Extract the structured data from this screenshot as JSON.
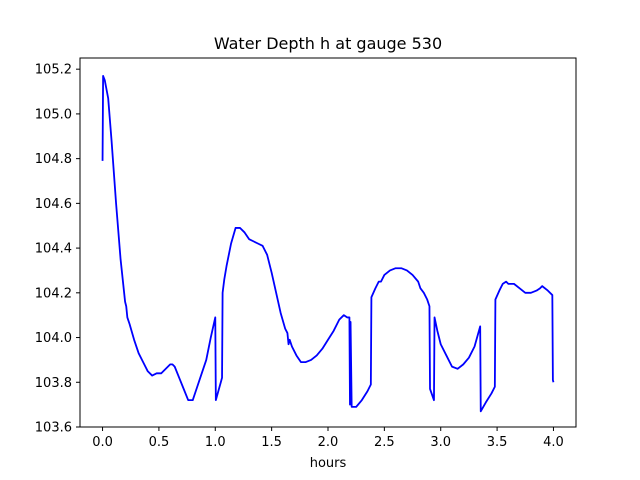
{
  "chart_data": {
    "type": "line",
    "title": "Water Depth h at gauge 530",
    "xlabel": "hours",
    "ylabel": "",
    "xlim": [
      -0.2,
      4.2
    ],
    "ylim": [
      103.6,
      105.25
    ],
    "xticks": [
      "0.0",
      "0.5",
      "1.0",
      "1.5",
      "2.0",
      "2.5",
      "3.0",
      "3.5",
      "4.0"
    ],
    "yticks": [
      "103.6",
      "103.8",
      "104.0",
      "104.2",
      "104.4",
      "104.6",
      "104.8",
      "105.0",
      "105.2"
    ],
    "grid": false,
    "series": [
      {
        "color": "#0000ff",
        "x": [
          0.0,
          0.005,
          0.02,
          0.05,
          0.08,
          0.12,
          0.16,
          0.2,
          0.21,
          0.22,
          0.24,
          0.28,
          0.32,
          0.36,
          0.4,
          0.44,
          0.48,
          0.52,
          0.56,
          0.6,
          0.62,
          0.64,
          0.68,
          0.72,
          0.76,
          0.8,
          0.84,
          0.88,
          0.92,
          0.96,
          1.0,
          1.005,
          1.06,
          1.065,
          1.08,
          1.1,
          1.14,
          1.18,
          1.22,
          1.26,
          1.3,
          1.34,
          1.38,
          1.42,
          1.46,
          1.5,
          1.54,
          1.58,
          1.62,
          1.64,
          1.65,
          1.66,
          1.68,
          1.72,
          1.76,
          1.8,
          1.85,
          1.9,
          1.95,
          2.0,
          2.05,
          2.1,
          2.14,
          2.17,
          2.19,
          2.195,
          2.2,
          2.21,
          2.215,
          2.22,
          2.25,
          2.3,
          2.35,
          2.38,
          2.385,
          2.42,
          2.45,
          2.47,
          2.5,
          2.55,
          2.6,
          2.65,
          2.7,
          2.75,
          2.8,
          2.82,
          2.85,
          2.88,
          2.9,
          2.905,
          2.94,
          2.945,
          2.97,
          3.0,
          3.05,
          3.1,
          3.15,
          3.2,
          3.25,
          3.3,
          3.35,
          3.355,
          3.4,
          3.45,
          3.48,
          3.485,
          3.52,
          3.55,
          3.58,
          3.6,
          3.65,
          3.7,
          3.75,
          3.8,
          3.85,
          3.88,
          3.9,
          3.95,
          3.99,
          3.995,
          4.0
        ],
        "y": [
          104.79,
          105.17,
          105.15,
          105.07,
          104.88,
          104.6,
          104.35,
          104.16,
          104.14,
          104.09,
          104.06,
          103.99,
          103.93,
          103.89,
          103.85,
          103.83,
          103.84,
          103.84,
          103.86,
          103.88,
          103.88,
          103.87,
          103.82,
          103.77,
          103.72,
          103.72,
          103.78,
          103.84,
          103.9,
          104.0,
          104.09,
          103.72,
          103.82,
          104.2,
          104.26,
          104.32,
          104.42,
          104.49,
          104.49,
          104.47,
          104.44,
          104.43,
          104.42,
          104.41,
          104.37,
          104.29,
          104.2,
          104.11,
          104.04,
          104.02,
          103.97,
          103.99,
          103.96,
          103.92,
          103.89,
          103.89,
          103.9,
          103.92,
          103.95,
          103.99,
          104.03,
          104.08,
          104.1,
          104.09,
          104.09,
          103.7,
          104.07,
          103.69,
          103.69,
          103.69,
          103.69,
          103.72,
          103.76,
          103.79,
          104.18,
          104.22,
          104.25,
          104.25,
          104.28,
          104.3,
          104.31,
          104.31,
          104.3,
          104.28,
          104.25,
          104.22,
          104.2,
          104.17,
          104.14,
          103.77,
          103.72,
          104.09,
          104.03,
          103.97,
          103.92,
          103.87,
          103.86,
          103.88,
          103.91,
          103.96,
          104.05,
          103.67,
          103.71,
          103.75,
          103.78,
          104.17,
          104.21,
          104.24,
          104.25,
          104.24,
          104.24,
          104.22,
          104.2,
          104.2,
          104.21,
          104.22,
          104.23,
          104.21,
          104.19,
          103.81,
          103.8
        ]
      }
    ]
  }
}
